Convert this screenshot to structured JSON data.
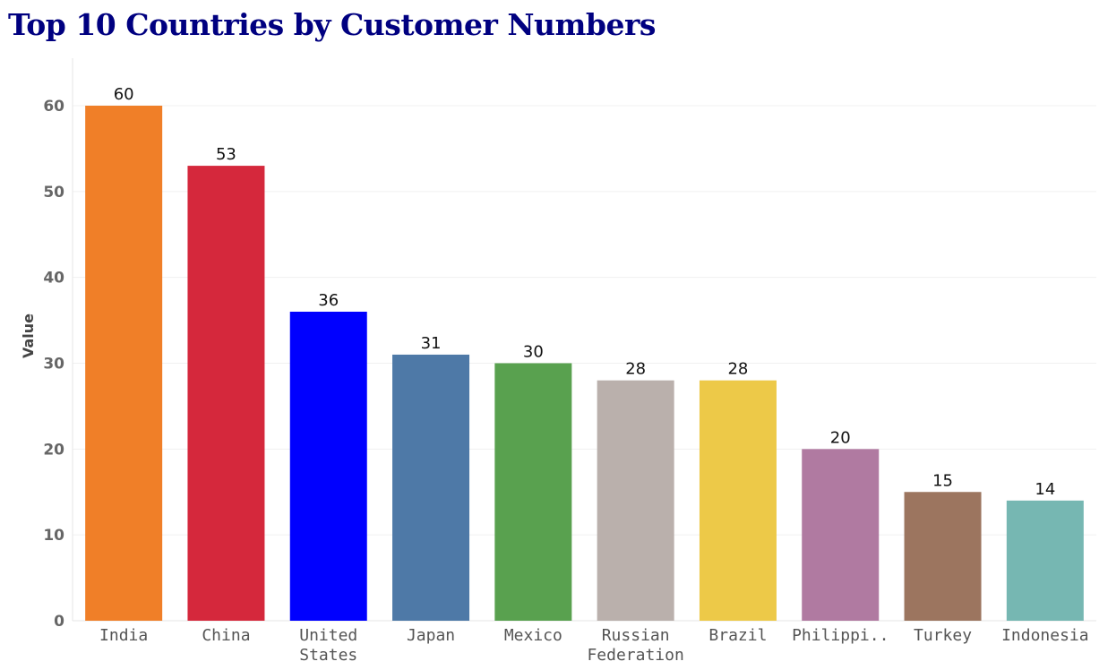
{
  "chart_data": {
    "type": "bar",
    "title": "Top 10 Countries by Customer Numbers",
    "xlabel": "",
    "ylabel": "Value",
    "ylim": [
      0,
      65
    ],
    "yticks": [
      0,
      10,
      20,
      30,
      40,
      50,
      60
    ],
    "grid": true,
    "legend": "none",
    "categories": [
      "India",
      "China",
      "United States",
      "Japan",
      "Mexico",
      "Russian Federation",
      "Brazil",
      "Philippi..",
      "Turkey",
      "Indonesia"
    ],
    "category_lines": [
      [
        "India"
      ],
      [
        "China"
      ],
      [
        "United",
        "States"
      ],
      [
        "Japan"
      ],
      [
        "Mexico"
      ],
      [
        "Russian",
        "Federation"
      ],
      [
        "Brazil"
      ],
      [
        "Philippi.."
      ],
      [
        "Turkey"
      ],
      [
        "Indonesia"
      ]
    ],
    "values": [
      60,
      53,
      36,
      31,
      30,
      28,
      28,
      20,
      15,
      14
    ],
    "colors": [
      "#F07F28",
      "#D5283C",
      "#0000FF",
      "#4E79A7",
      "#59A14F",
      "#BAB0AC",
      "#EDC948",
      "#B07AA1",
      "#9C755F",
      "#76B7B2"
    ]
  }
}
